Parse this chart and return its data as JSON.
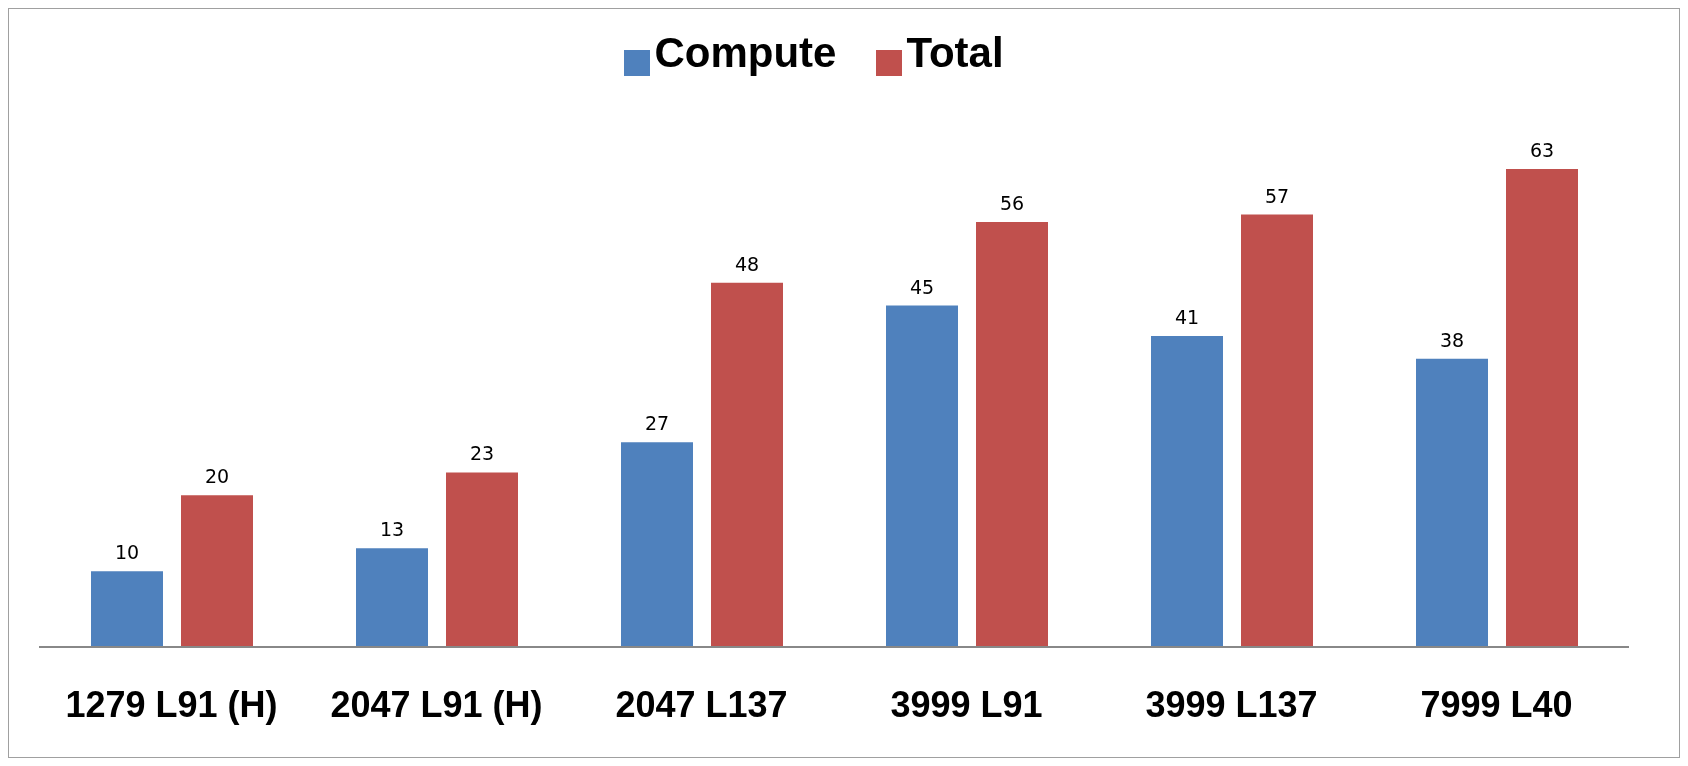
{
  "chart_data": {
    "type": "bar",
    "categories": [
      "1279 L91 (H)",
      "2047 L91 (H)",
      "2047 L137",
      "3999 L91",
      "3999 L137",
      "7999 L40"
    ],
    "series": [
      {
        "name": "Compute",
        "color": "#4f81bd",
        "values": [
          10,
          13,
          27,
          45,
          41,
          38
        ]
      },
      {
        "name": "Total",
        "color": "#c0504d",
        "values": [
          20,
          23,
          48,
          56,
          57,
          63
        ]
      }
    ],
    "data_labels": true,
    "legend": "top",
    "grid": false
  }
}
